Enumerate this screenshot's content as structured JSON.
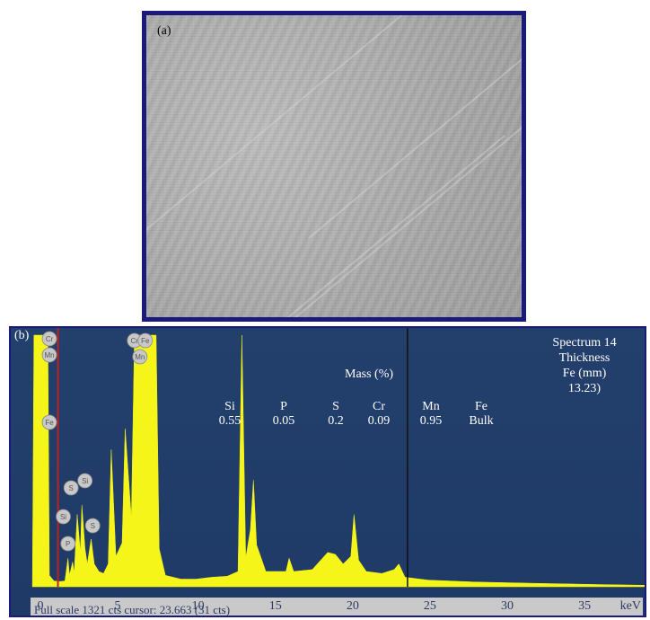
{
  "panel_a": {
    "label": "(a)"
  },
  "panel_b": {
    "label": "(b)",
    "mass_title": "Mass (%)",
    "elements": [
      {
        "symbol": "Si",
        "value": "0.55"
      },
      {
        "symbol": "P",
        "value": "0.05"
      },
      {
        "symbol": "S",
        "value": "0.2"
      },
      {
        "symbol": "Cr",
        "value": "0.09"
      },
      {
        "symbol": "Mn",
        "value": "0.95"
      },
      {
        "symbol": "Fe",
        "value": "Bulk"
      }
    ],
    "spectrum_info": [
      "Spectrum 14",
      "Thickness",
      "Fe (mm)",
      "13.23)"
    ],
    "status_text": "Full scale 1321 cts cursor: 23.663 (31 cts)",
    "unit": "keV",
    "peak_markers": [
      "Cr",
      "Mn",
      "Fe",
      "Cr",
      "Fe",
      "Mn",
      "Si",
      "P",
      "Si",
      "S"
    ],
    "colors": {
      "background": "#1f3a66",
      "spectrum": "#f5f51a",
      "frame": "#1a1a7a",
      "cursor": "#c02020"
    }
  },
  "chart_data": {
    "type": "area",
    "xlabel": "keV",
    "ylabel": "",
    "xlim": [
      -2,
      39
    ],
    "ylim": [
      0,
      1321
    ],
    "x_ticks": [
      0,
      5,
      10,
      15,
      20,
      25,
      30,
      35
    ],
    "cursor_x": 23.663,
    "spectrum": [
      [
        -0.6,
        0
      ],
      [
        -0.5,
        1321
      ],
      [
        0.4,
        1321
      ],
      [
        0.5,
        60
      ],
      [
        0.8,
        30
      ],
      [
        1.2,
        28
      ],
      [
        1.5,
        30
      ],
      [
        1.7,
        150
      ],
      [
        1.8,
        60
      ],
      [
        2.0,
        130
      ],
      [
        2.1,
        70
      ],
      [
        2.3,
        380
      ],
      [
        2.5,
        180
      ],
      [
        2.6,
        430
      ],
      [
        2.8,
        200
      ],
      [
        2.95,
        120
      ],
      [
        3.2,
        250
      ],
      [
        3.4,
        120
      ],
      [
        3.7,
        80
      ],
      [
        4.0,
        70
      ],
      [
        4.3,
        120
      ],
      [
        4.5,
        720
      ],
      [
        4.8,
        160
      ],
      [
        5.2,
        230
      ],
      [
        5.4,
        830
      ],
      [
        5.8,
        360
      ],
      [
        6.0,
        1321
      ],
      [
        7.4,
        1321
      ],
      [
        7.6,
        200
      ],
      [
        8.0,
        60
      ],
      [
        9.0,
        40
      ],
      [
        10.0,
        40
      ],
      [
        11.0,
        50
      ],
      [
        12.0,
        55
      ],
      [
        12.7,
        80
      ],
      [
        12.95,
        1321
      ],
      [
        13.2,
        150
      ],
      [
        13.5,
        300
      ],
      [
        13.7,
        560
      ],
      [
        13.9,
        220
      ],
      [
        14.5,
        80
      ],
      [
        15.8,
        80
      ],
      [
        16.0,
        150
      ],
      [
        16.3,
        80
      ],
      [
        17.5,
        90
      ],
      [
        18.5,
        180
      ],
      [
        19.0,
        170
      ],
      [
        19.5,
        120
      ],
      [
        20.0,
        160
      ],
      [
        20.2,
        380
      ],
      [
        20.5,
        140
      ],
      [
        21.0,
        80
      ],
      [
        22.0,
        70
      ],
      [
        22.8,
        90
      ],
      [
        23.1,
        120
      ],
      [
        23.5,
        50
      ],
      [
        25,
        35
      ],
      [
        28,
        25
      ],
      [
        32,
        18
      ],
      [
        36,
        12
      ],
      [
        39,
        8
      ]
    ],
    "annotation_values": {
      "Si": 0.55,
      "P": 0.05,
      "S": 0.2,
      "Cr": 0.09,
      "Mn": 0.95
    }
  }
}
